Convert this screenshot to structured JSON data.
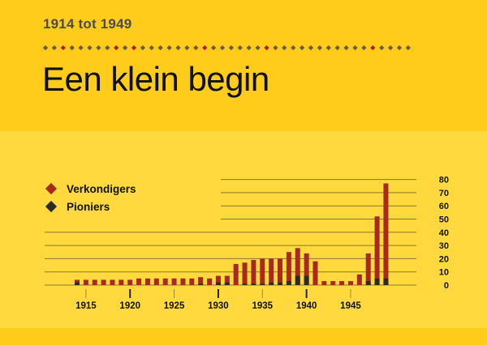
{
  "header": {
    "subtitle": "1914 tot 1949",
    "title": "Een klein begin"
  },
  "colors": {
    "background_light": "#FFD93D",
    "background_dark": "#FFCC1C",
    "publishers": "#A8291E",
    "pioneers": "#2B2A26",
    "gridline": "#8A7530",
    "dot_gray": "#6B5A3C",
    "dot_red": "#B21E14"
  },
  "divider": {
    "count": 42,
    "red_indices": [
      2,
      8,
      10,
      18,
      25,
      37
    ]
  },
  "legend": {
    "items": [
      {
        "label": "Verkondigers",
        "color": "#A8291E"
      },
      {
        "label": "Pioniers",
        "color": "#2B2A26"
      }
    ]
  },
  "chart_data": {
    "type": "bar",
    "title": "Een klein begin",
    "subtitle": "1914 tot 1949",
    "xlabel": "",
    "ylabel": "",
    "ylim": [
      0,
      80
    ],
    "yticks": [
      0,
      10,
      20,
      30,
      40,
      50,
      60,
      70,
      80
    ],
    "xticks": [
      1915,
      1920,
      1925,
      1930,
      1935,
      1940,
      1945
    ],
    "grid": true,
    "legend_position": "upper-left",
    "categories": [
      1914,
      1915,
      1916,
      1917,
      1918,
      1919,
      1920,
      1921,
      1922,
      1923,
      1924,
      1925,
      1926,
      1927,
      1928,
      1929,
      1930,
      1931,
      1932,
      1933,
      1934,
      1935,
      1936,
      1937,
      1938,
      1939,
      1940,
      1941,
      1942,
      1943,
      1944,
      1945,
      1946,
      1947,
      1948,
      1949
    ],
    "series": [
      {
        "name": "Verkondigers",
        "values": [
          4,
          4,
          4,
          4,
          4,
          4,
          4,
          5,
          5,
          5,
          5,
          5,
          5,
          5,
          6,
          5,
          7,
          7,
          16,
          17,
          19,
          20,
          20,
          20,
          25,
          28,
          24,
          18,
          3,
          3,
          3,
          3,
          8,
          24,
          52,
          77
        ]
      },
      {
        "name": "Pioniers",
        "values": [
          2,
          0,
          0,
          0,
          0,
          0,
          0,
          0,
          0,
          0,
          0,
          0,
          0,
          0,
          1,
          0,
          2,
          2,
          0,
          1,
          1,
          1,
          2,
          2,
          3,
          7,
          7,
          0,
          0,
          0,
          0,
          0,
          0,
          3,
          5,
          5
        ]
      }
    ]
  }
}
